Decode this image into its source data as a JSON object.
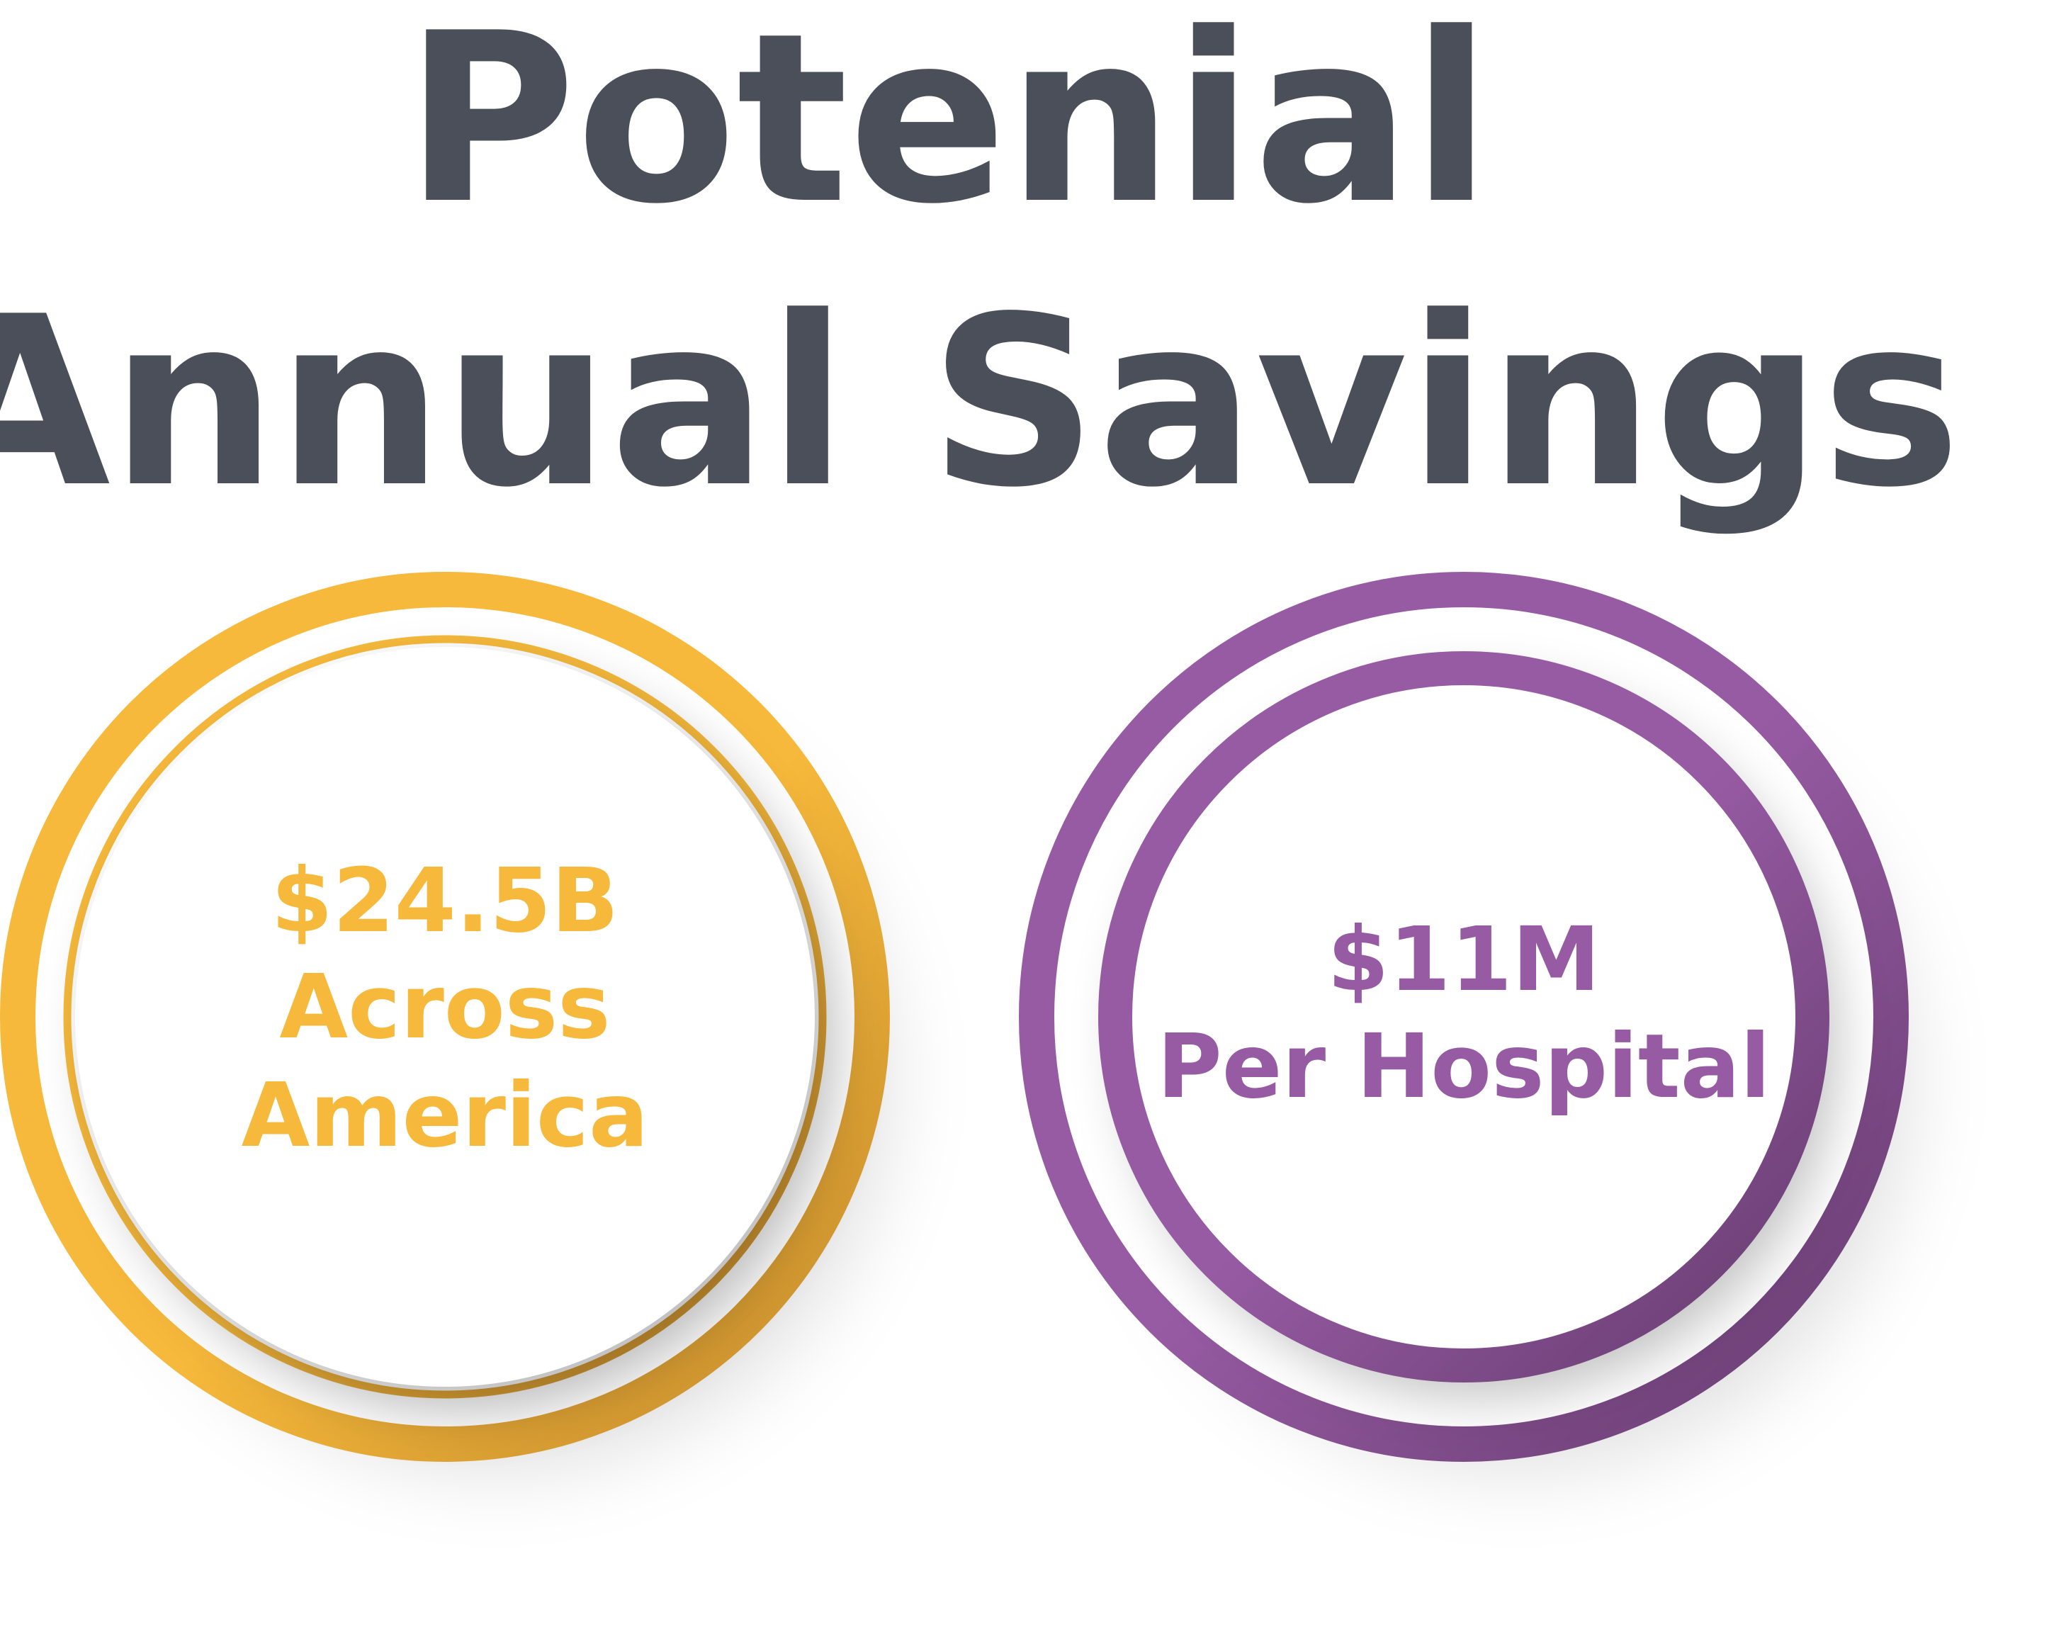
{
  "title": {
    "line1": "Potenial",
    "line2": "Annual Savings"
  },
  "colors": {
    "title": "#4a4f59",
    "gold": "#f6b93b",
    "gold_dark": "#c48a2c",
    "purple": "#975ba3",
    "purple_dark": "#653b6e"
  },
  "stats": [
    {
      "value": "$24.5B",
      "label_line1": "Across",
      "label_line2": "America"
    },
    {
      "value": "$11M",
      "label_line1": "Per Hospital"
    }
  ]
}
